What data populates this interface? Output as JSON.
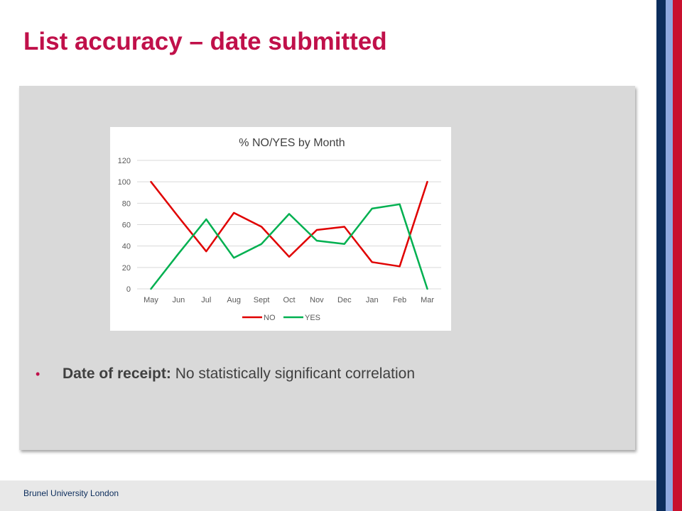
{
  "slide": {
    "title": "List accuracy – date submitted",
    "title_color": "#c0104a"
  },
  "bullet": {
    "bold_label": "Date of receipt:",
    "text": " No statistically significant correlation",
    "marker": "•",
    "marker_color": "#c0104a"
  },
  "footer": {
    "text": "Brunel University London",
    "color": "#0c2d5c"
  },
  "brand_stripes": [
    "#0c2d5c",
    "#8fa9e0",
    "#c8102e"
  ],
  "chart_data": {
    "type": "line",
    "title": "% NO/YES by Month",
    "categories": [
      "May",
      "Jun",
      "Jul",
      "Aug",
      "Sept",
      "Oct",
      "Nov",
      "Dec",
      "Jan",
      "Feb",
      "Mar"
    ],
    "series": [
      {
        "name": "NO",
        "color": "#e00000",
        "values": [
          100,
          67,
          35,
          71,
          58,
          30,
          55,
          58,
          25,
          21,
          100
        ]
      },
      {
        "name": "YES",
        "color": "#00b050",
        "values": [
          0,
          33,
          65,
          29,
          42,
          70,
          45,
          42,
          75,
          79,
          0
        ]
      }
    ],
    "ylim": [
      0,
      120
    ],
    "yticks": [
      0,
      20,
      40,
      60,
      80,
      100,
      120
    ],
    "grid": true,
    "legend": "bottom"
  }
}
